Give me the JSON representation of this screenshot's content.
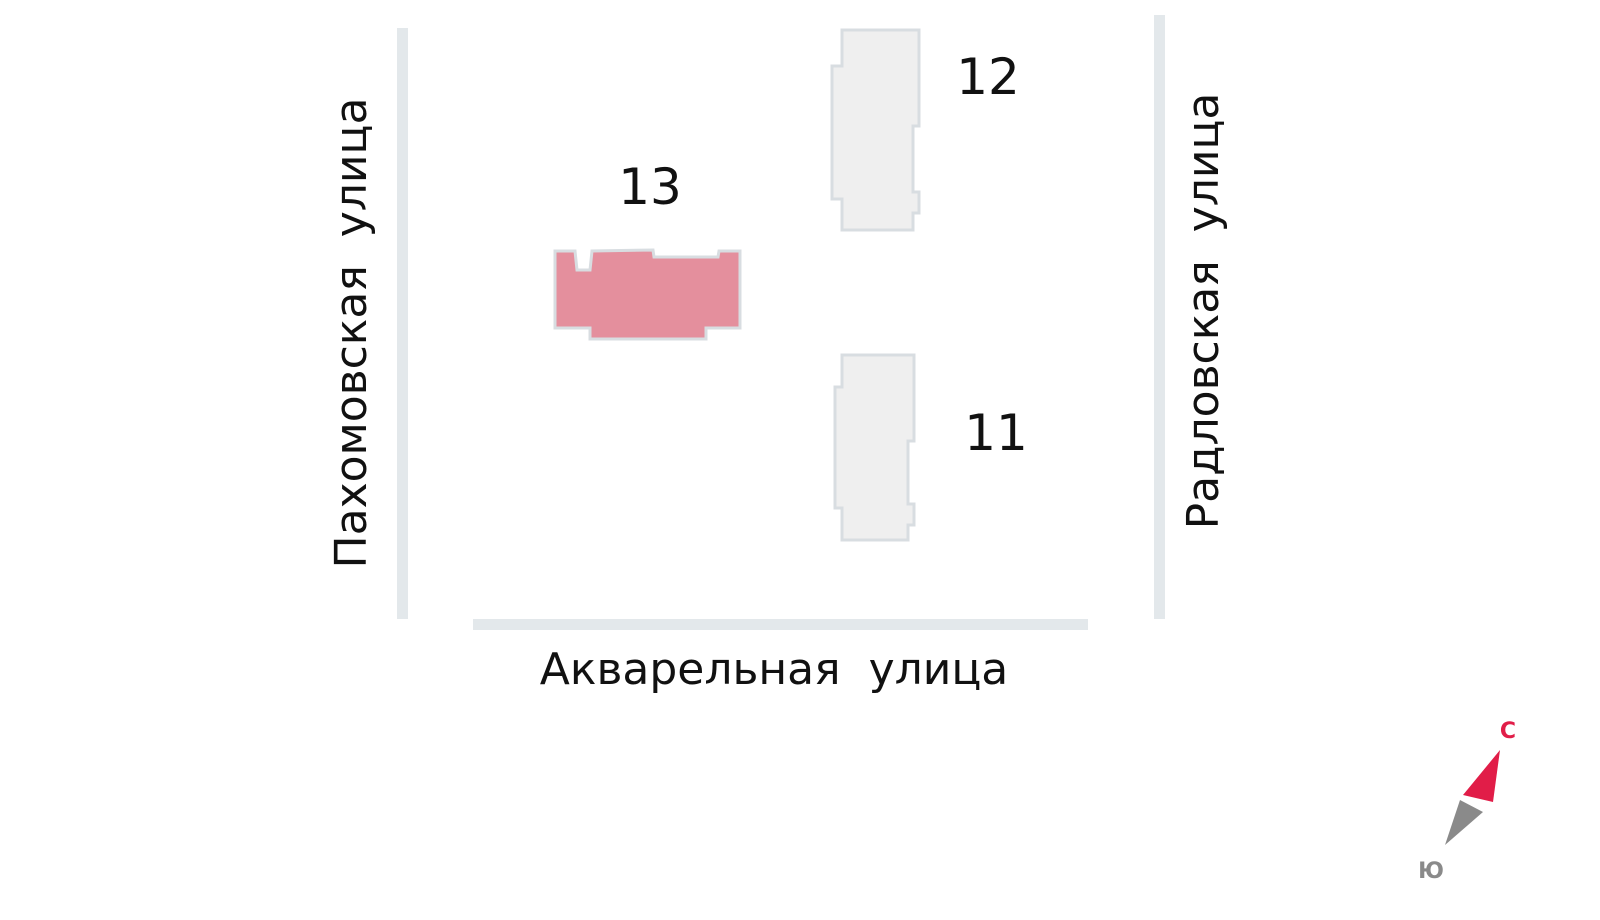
{
  "streets": {
    "west": "Пахомовская  улица",
    "east": "Радловская  улица",
    "south": "Акварельная  улица"
  },
  "buildings": [
    {
      "number": "13",
      "highlighted": true
    },
    {
      "number": "12",
      "highlighted": false
    },
    {
      "number": "11",
      "highlighted": false
    }
  ],
  "compass": {
    "north": "С",
    "south": "Ю"
  },
  "colors": {
    "highlight": "#e48f9d",
    "building": "#efefef",
    "outline": "#d8dde1",
    "road": "#e3e8eb",
    "north": "#e11d48",
    "south": "#8a8a8a"
  }
}
